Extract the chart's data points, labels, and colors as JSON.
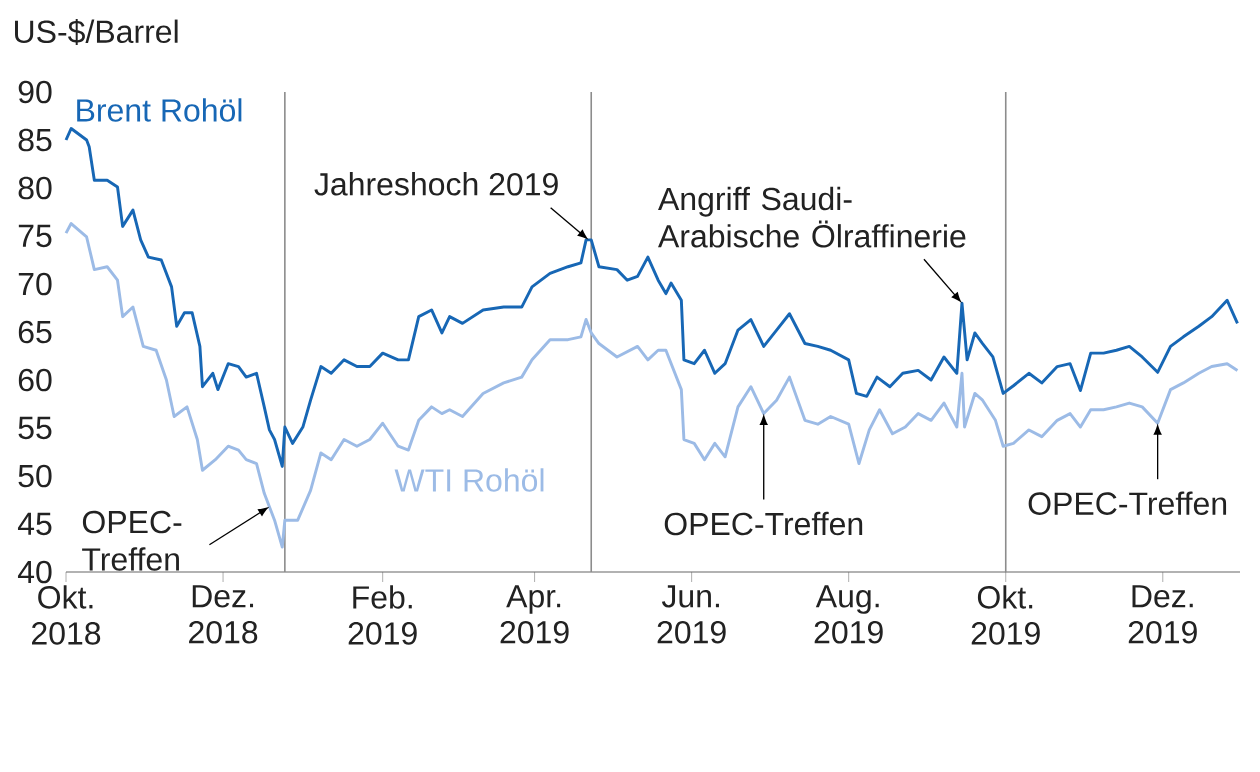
{
  "chart_data": {
    "type": "line",
    "ylabel": "US-$/Barrel",
    "xlim": [
      "2018-10-01",
      "2019-12-31"
    ],
    "ylim": [
      40,
      90
    ],
    "yticks": [
      40,
      45,
      50,
      55,
      60,
      65,
      70,
      75,
      80,
      85,
      90
    ],
    "xticks": [
      {
        "value": "2018-10-01",
        "label": "Okt. 2018"
      },
      {
        "value": "2018-12-01",
        "label": "Dez. 2018"
      },
      {
        "value": "2019-02-01",
        "label": "Feb. 2019"
      },
      {
        "value": "2019-04-01",
        "label": "Apr. 2019"
      },
      {
        "value": "2019-06-01",
        "label": "Jun. 2019"
      },
      {
        "value": "2019-08-01",
        "label": "Aug. 2019"
      },
      {
        "value": "2019-10-01",
        "label": "Okt. 2019"
      },
      {
        "value": "2019-12-01",
        "label": "Dez. 2019"
      }
    ],
    "series": [
      {
        "name": "Brent Rohöl",
        "color": "#1767b5",
        "x": [
          "2018-10-01",
          "2018-10-03",
          "2018-10-09",
          "2018-10-10",
          "2018-10-12",
          "2018-10-17",
          "2018-10-21",
          "2018-10-23",
          "2018-10-27",
          "2018-10-30",
          "2018-11-02",
          "2018-11-07",
          "2018-11-11",
          "2018-11-13",
          "2018-11-16",
          "2018-11-19",
          "2018-11-22",
          "2018-11-23",
          "2018-11-27",
          "2018-11-29",
          "2018-12-03",
          "2018-12-07",
          "2018-12-10",
          "2018-12-14",
          "2018-12-17",
          "2018-12-19",
          "2018-12-21",
          "2018-12-24",
          "2018-12-25",
          "2018-12-28",
          "2019-01-01",
          "2019-01-04",
          "2019-01-08",
          "2019-01-12",
          "2019-01-17",
          "2019-01-22",
          "2019-01-27",
          "2019-02-01",
          "2019-02-07",
          "2019-02-11",
          "2019-02-15",
          "2019-02-20",
          "2019-02-24",
          "2019-02-27",
          "2019-03-04",
          "2019-03-12",
          "2019-03-20",
          "2019-03-27",
          "2019-03-31",
          "2019-04-07",
          "2019-04-14",
          "2019-04-19",
          "2019-04-21",
          "2019-04-23",
          "2019-04-26",
          "2019-05-03",
          "2019-05-07",
          "2019-05-11",
          "2019-05-15",
          "2019-05-19",
          "2019-05-22",
          "2019-05-24",
          "2019-05-28",
          "2019-05-29",
          "2019-06-02",
          "2019-06-06",
          "2019-06-10",
          "2019-06-14",
          "2019-06-19",
          "2019-06-24",
          "2019-06-29",
          "2019-07-04",
          "2019-07-09",
          "2019-07-15",
          "2019-07-20",
          "2019-07-25",
          "2019-08-01",
          "2019-08-04",
          "2019-08-08",
          "2019-08-12",
          "2019-08-17",
          "2019-08-22",
          "2019-08-28",
          "2019-09-02",
          "2019-09-07",
          "2019-09-12",
          "2019-09-14",
          "2019-09-16",
          "2019-09-19",
          "2019-09-22",
          "2019-09-26",
          "2019-09-30",
          "2019-10-04",
          "2019-10-10",
          "2019-10-15",
          "2019-10-21",
          "2019-10-26",
          "2019-10-30",
          "2019-11-03",
          "2019-11-08",
          "2019-11-13",
          "2019-11-18",
          "2019-11-23",
          "2019-11-29",
          "2019-12-04",
          "2019-12-09",
          "2019-12-15",
          "2019-12-20",
          "2019-12-26",
          "2019-12-30"
        ],
        "values": [
          85.0,
          86.2,
          85.0,
          84.3,
          80.8,
          80.8,
          80.1,
          76.0,
          77.7,
          74.6,
          72.8,
          72.5,
          69.7,
          65.6,
          67.0,
          67.0,
          63.5,
          59.3,
          60.7,
          59.0,
          61.7,
          61.4,
          60.3,
          60.7,
          57.2,
          54.8,
          53.8,
          51.0,
          55.1,
          53.4,
          55.1,
          57.9,
          61.4,
          60.7,
          62.1,
          61.4,
          61.4,
          62.8,
          62.1,
          62.1,
          66.6,
          67.3,
          64.9,
          66.6,
          65.9,
          67.3,
          67.6,
          67.6,
          69.7,
          71.1,
          71.8,
          72.2,
          74.6,
          74.6,
          71.8,
          71.5,
          70.4,
          70.8,
          72.8,
          70.4,
          69.0,
          70.1,
          68.3,
          62.1,
          61.7,
          63.1,
          60.7,
          61.7,
          65.2,
          66.3,
          63.5,
          65.2,
          66.9,
          63.8,
          63.5,
          63.1,
          62.1,
          58.6,
          58.3,
          60.3,
          59.3,
          60.7,
          61.0,
          60.0,
          62.4,
          60.7,
          68.0,
          62.1,
          64.9,
          63.8,
          62.4,
          58.6,
          59.4,
          60.7,
          59.7,
          61.4,
          61.7,
          58.9,
          62.8,
          62.8,
          63.1,
          63.5,
          62.4,
          60.8,
          63.5,
          64.5,
          65.6,
          66.6,
          68.3,
          65.9
        ]
      },
      {
        "name": "WTI Rohöl",
        "color": "#9cbbe6",
        "x": [
          "2018-10-01",
          "2018-10-03",
          "2018-10-09",
          "2018-10-12",
          "2018-10-17",
          "2018-10-21",
          "2018-10-23",
          "2018-10-27",
          "2018-10-31",
          "2018-11-05",
          "2018-11-09",
          "2018-11-12",
          "2018-11-17",
          "2018-11-21",
          "2018-11-23",
          "2018-11-28",
          "2018-12-03",
          "2018-12-07",
          "2018-12-10",
          "2018-12-14",
          "2018-12-17",
          "2018-12-19",
          "2018-12-21",
          "2018-12-24",
          "2018-12-25",
          "2018-12-30",
          "2019-01-04",
          "2019-01-08",
          "2019-01-12",
          "2019-01-17",
          "2019-01-22",
          "2019-01-27",
          "2019-02-01",
          "2019-02-07",
          "2019-02-11",
          "2019-02-15",
          "2019-02-20",
          "2019-02-24",
          "2019-02-27",
          "2019-03-04",
          "2019-03-12",
          "2019-03-20",
          "2019-03-27",
          "2019-03-31",
          "2019-04-07",
          "2019-04-14",
          "2019-04-19",
          "2019-04-21",
          "2019-04-23",
          "2019-04-26",
          "2019-05-03",
          "2019-05-11",
          "2019-05-15",
          "2019-05-19",
          "2019-05-22",
          "2019-05-28",
          "2019-05-29",
          "2019-06-02",
          "2019-06-06",
          "2019-06-10",
          "2019-06-14",
          "2019-06-19",
          "2019-06-24",
          "2019-06-29",
          "2019-07-04",
          "2019-07-09",
          "2019-07-15",
          "2019-07-20",
          "2019-07-25",
          "2019-08-01",
          "2019-08-05",
          "2019-08-09",
          "2019-08-13",
          "2019-08-18",
          "2019-08-23",
          "2019-08-28",
          "2019-09-02",
          "2019-09-07",
          "2019-09-12",
          "2019-09-14",
          "2019-09-15",
          "2019-09-19",
          "2019-09-22",
          "2019-09-27",
          "2019-09-30",
          "2019-10-04",
          "2019-10-10",
          "2019-10-15",
          "2019-10-21",
          "2019-10-26",
          "2019-10-30",
          "2019-11-03",
          "2019-11-08",
          "2019-11-13",
          "2019-11-18",
          "2019-11-23",
          "2019-11-29",
          "2019-12-04",
          "2019-12-09",
          "2019-12-15",
          "2019-12-20",
          "2019-12-26",
          "2019-12-30"
        ],
        "values": [
          75.3,
          76.3,
          74.9,
          71.5,
          71.8,
          70.4,
          66.6,
          67.6,
          63.5,
          63.1,
          60.0,
          56.2,
          57.2,
          53.8,
          50.6,
          51.7,
          53.1,
          52.7,
          51.7,
          51.3,
          48.2,
          46.8,
          45.4,
          42.6,
          45.4,
          45.4,
          48.5,
          52.4,
          51.7,
          53.8,
          53.1,
          53.8,
          55.5,
          53.1,
          52.7,
          55.8,
          57.2,
          56.5,
          56.9,
          56.2,
          58.6,
          59.7,
          60.3,
          62.1,
          64.2,
          64.2,
          64.5,
          66.3,
          64.9,
          63.8,
          62.4,
          63.5,
          62.1,
          63.1,
          63.1,
          59.0,
          53.8,
          53.4,
          51.7,
          53.4,
          52.0,
          57.2,
          59.3,
          56.5,
          57.9,
          60.3,
          55.8,
          55.4,
          56.2,
          55.4,
          51.3,
          54.8,
          56.9,
          54.4,
          55.1,
          56.5,
          55.8,
          57.6,
          55.1,
          60.7,
          55.1,
          58.6,
          57.9,
          55.8,
          53.1,
          53.4,
          54.8,
          54.1,
          55.8,
          56.5,
          55.1,
          56.9,
          56.9,
          57.2,
          57.6,
          57.2,
          55.5,
          59.0,
          59.7,
          60.7,
          61.4,
          61.7,
          61.0
        ]
      }
    ],
    "ref_lines": [
      {
        "axis": "x",
        "value": "2018-12-25",
        "color": "#8c8c8c"
      },
      {
        "axis": "x",
        "value": "2019-04-23",
        "color": "#8c8c8c"
      },
      {
        "axis": "x",
        "value": "2019-10-01",
        "color": "#8c8c8c"
      }
    ],
    "annotations": [
      {
        "text": "Jahreshoch 2019",
        "x": "2019-04-22",
        "y": 74.6
      },
      {
        "text": "Angriff Saudi-Arabische Ölraffinerie",
        "x": "2019-09-14",
        "y": 68
      },
      {
        "text": "OPEC-Treffen",
        "x": "2018-12-19",
        "y": 46.8
      },
      {
        "text": "OPEC-Treffen",
        "x": "2019-06-29",
        "y": 56.5
      },
      {
        "text": "OPEC-Treffen",
        "x": "2019-11-29",
        "y": 55.5
      }
    ]
  }
}
